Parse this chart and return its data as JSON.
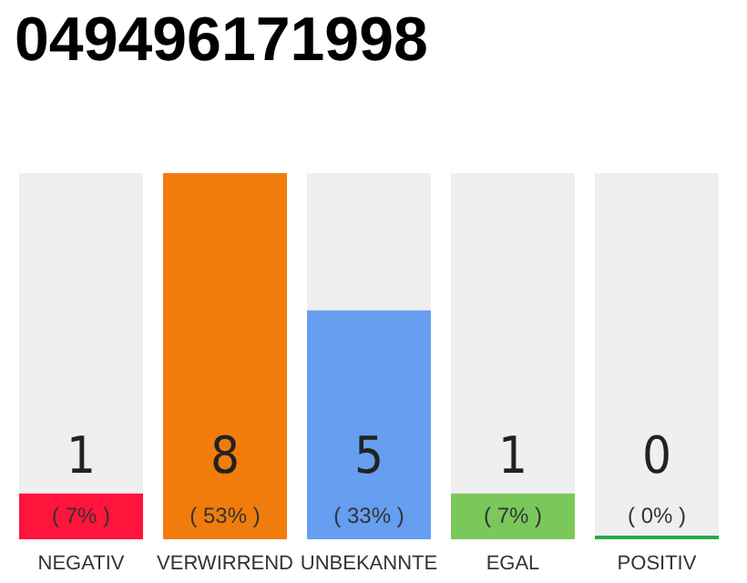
{
  "chart_data": {
    "type": "bar",
    "title": "049496171998",
    "categories": [
      "NEGATIV",
      "VERWIRREND",
      "UNBEKANNTE",
      "EGAL",
      "POSITIV"
    ],
    "values": [
      1,
      8,
      5,
      1,
      0
    ],
    "colors": [
      "#ff143c",
      "#f17c0c",
      "#669ef0",
      "#7ac85a",
      "#2aa84a"
    ],
    "tick_labels": "x",
    "data_labels": true,
    "annotations": [
      "( 7% )",
      "( 53% )",
      "( 33% )",
      "( 7% )",
      "( 0% )"
    ]
  }
}
